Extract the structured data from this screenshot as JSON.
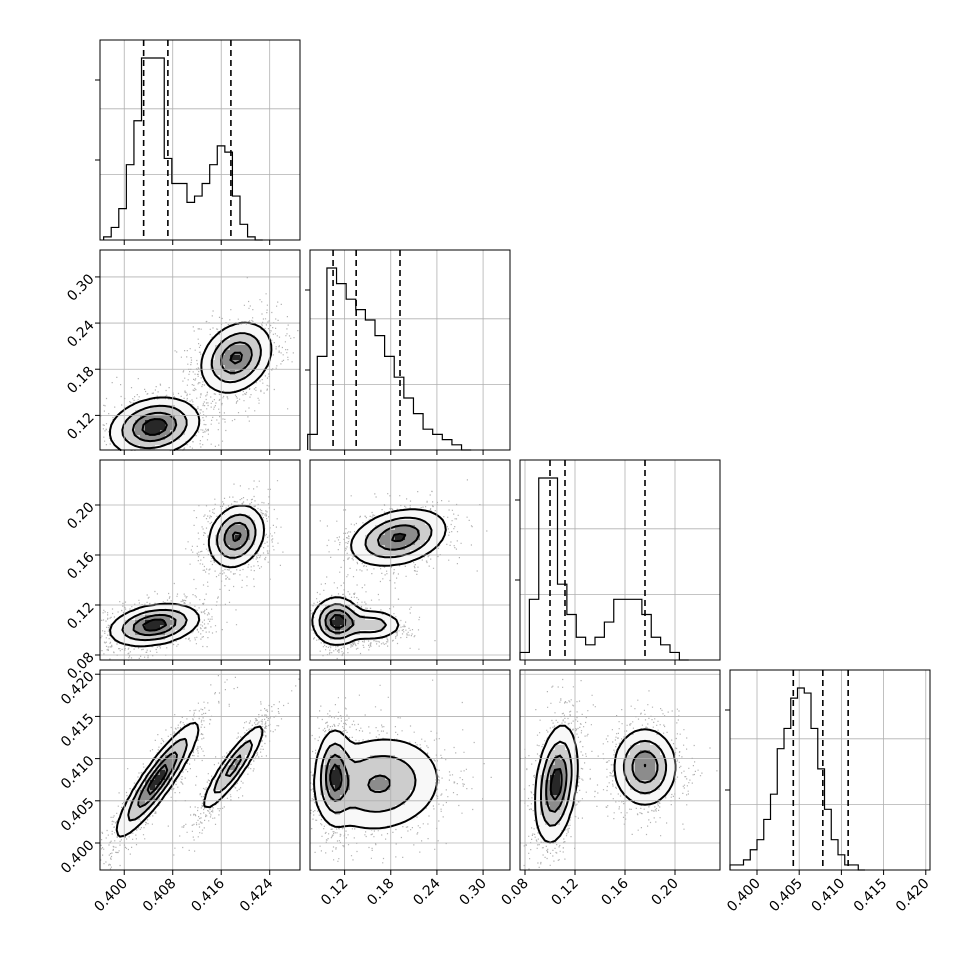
{
  "chart_data": {
    "type": "corner",
    "grid": true,
    "parameters": [
      {
        "range": [
          0.396,
          0.429
        ],
        "ticks": [
          0.4,
          0.408,
          0.416,
          0.424
        ],
        "tick_labels": [
          "0.400",
          "0.408",
          "0.416",
          "0.424"
        ]
      },
      {
        "range": [
          0.075,
          0.335
        ],
        "ticks": [
          0.12,
          0.18,
          0.24,
          0.3
        ],
        "tick_labels": [
          "0.12",
          "0.18",
          "0.24",
          "0.30"
        ]
      },
      {
        "range": [
          0.076,
          0.236
        ],
        "ticks": [
          0.08,
          0.12,
          0.16,
          0.2
        ],
        "tick_labels": [
          "0.08",
          "0.12",
          "0.16",
          "0.20"
        ]
      },
      {
        "range": [
          0.3968,
          0.4205
        ],
        "ticks": [
          0.4,
          0.405,
          0.41,
          0.415,
          0.42
        ],
        "tick_labels": [
          "0.400",
          "0.405",
          "0.410",
          "0.415",
          "0.420"
        ]
      }
    ],
    "histograms": [
      {
        "bin_edges_start": 0.3966,
        "bin_width": 0.00125,
        "counts": [
          1,
          4,
          10,
          24,
          38,
          58,
          58,
          58,
          26,
          18,
          18,
          12,
          14,
          18,
          24,
          30,
          28,
          14,
          5,
          1,
          0
        ],
        "quantiles": [
          0.4032,
          0.4072,
          0.4176
        ]
      },
      {
        "bin_edges_start": 0.072,
        "bin_width": 0.0125,
        "counts": [
          3,
          18,
          35,
          32,
          29,
          27,
          25,
          22,
          18,
          14,
          10,
          7,
          4,
          3,
          2,
          1,
          0
        ],
        "quantiles": [
          0.105,
          0.135,
          0.192
        ]
      },
      {
        "bin_edges_start": 0.076,
        "bin_width": 0.0075,
        "counts": [
          1,
          8,
          24,
          24,
          10,
          6,
          3,
          2,
          3,
          5,
          8,
          8,
          8,
          6,
          3,
          2,
          1,
          0
        ],
        "quantiles": [
          0.1,
          0.112,
          0.176
        ]
      },
      {
        "bin_edges_start": 0.3968,
        "bin_width": 0.0008,
        "counts": [
          1,
          1,
          2,
          4,
          6,
          10,
          15,
          24,
          28,
          34,
          36,
          35,
          28,
          20,
          12,
          6,
          3,
          1,
          1,
          0
        ],
        "quantiles": [
          0.4043,
          0.4078,
          0.4108
        ]
      }
    ],
    "panels_2d": [
      {
        "x": 0,
        "y": 1,
        "modes": [
          {
            "mx": 0.405,
            "my": 0.105,
            "sx": 0.0035,
            "sy": 0.018,
            "w": 1.0,
            "rho": 0.2
          },
          {
            "mx": 0.4185,
            "my": 0.195,
            "sx": 0.0028,
            "sy": 0.022,
            "w": 0.9,
            "rho": 0.25
          }
        ]
      },
      {
        "x": 0,
        "y": 2,
        "modes": [
          {
            "mx": 0.405,
            "my": 0.104,
            "sx": 0.0035,
            "sy": 0.008,
            "w": 1.0,
            "rho": 0.3
          },
          {
            "mx": 0.4185,
            "my": 0.175,
            "sx": 0.0022,
            "sy": 0.012,
            "w": 0.9,
            "rho": 0.2
          }
        ]
      },
      {
        "x": 1,
        "y": 2,
        "modes": [
          {
            "mx": 0.11,
            "my": 0.107,
            "sx": 0.015,
            "sy": 0.009,
            "w": 1.0,
            "rho": 0.0
          },
          {
            "mx": 0.155,
            "my": 0.104,
            "sx": 0.02,
            "sy": 0.006,
            "w": 0.5,
            "rho": 0.0
          },
          {
            "mx": 0.19,
            "my": 0.174,
            "sx": 0.03,
            "sy": 0.011,
            "w": 0.9,
            "rho": 0.3
          }
        ]
      },
      {
        "x": 0,
        "y": 3,
        "modes": [
          {
            "mx": 0.4055,
            "my": 0.4075,
            "sx": 0.0032,
            "sy": 0.0032,
            "w": 1.0,
            "rho": 0.9
          },
          {
            "mx": 0.418,
            "my": 0.409,
            "sx": 0.0025,
            "sy": 0.0025,
            "w": 0.7,
            "rho": 0.9
          }
        ]
      },
      {
        "x": 1,
        "y": 3,
        "modes": [
          {
            "mx": 0.107,
            "my": 0.408,
            "sx": 0.011,
            "sy": 0.0026,
            "w": 1.0,
            "rho": 0.0
          },
          {
            "mx": 0.165,
            "my": 0.407,
            "sx": 0.04,
            "sy": 0.0028,
            "w": 0.8,
            "rho": 0.1
          }
        ]
      },
      {
        "x": 2,
        "y": 3,
        "modes": [
          {
            "mx": 0.105,
            "my": 0.407,
            "sx": 0.008,
            "sy": 0.0033,
            "w": 1.0,
            "rho": 0.3
          },
          {
            "mx": 0.176,
            "my": 0.409,
            "sx": 0.012,
            "sy": 0.0022,
            "w": 0.85,
            "rho": 0.0
          }
        ]
      }
    ]
  }
}
